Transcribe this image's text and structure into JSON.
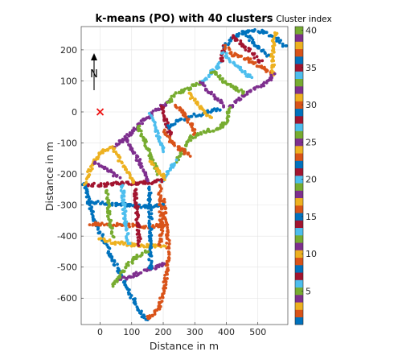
{
  "chart_data": {
    "type": "scatter",
    "title": "k-means (PO) with 40 clusters",
    "xlabel": "Distance in m",
    "ylabel": "Distance in m",
    "xlim": [
      -60,
      595
    ],
    "ylim": [
      -685,
      275
    ],
    "xticks": [
      0,
      100,
      200,
      300,
      400,
      500
    ],
    "yticks": [
      200,
      100,
      0,
      -100,
      -200,
      -300,
      -400,
      -500,
      -600
    ],
    "grid": true,
    "north_label": "N",
    "origin_marker": {
      "x": 0,
      "y": 0,
      "symbol": "x",
      "color": "#ee1111"
    },
    "colorbar": {
      "title": "Cluster index",
      "range": [
        1,
        40
      ],
      "ticks": [
        5,
        10,
        15,
        20,
        25,
        30,
        35,
        40
      ],
      "colors": [
        "#0072bd",
        "#d95319",
        "#edb120",
        "#7e2f8e",
        "#77ac30",
        "#4dbeee",
        "#a2142f",
        "#0072bd",
        "#d95319",
        "#edb120",
        "#7e2f8e",
        "#77ac30",
        "#4dbeee",
        "#a2142f",
        "#0072bd",
        "#d95319",
        "#edb120",
        "#7e2f8e",
        "#77ac30",
        "#4dbeee",
        "#a2142f",
        "#0072bd",
        "#d95319",
        "#edb120",
        "#7e2f8e",
        "#77ac30",
        "#4dbeee",
        "#a2142f",
        "#0072bd",
        "#d95319",
        "#edb120",
        "#7e2f8e",
        "#77ac30",
        "#4dbeee",
        "#a2142f",
        "#0072bd",
        "#d95319",
        "#edb120",
        "#7e2f8e",
        "#77ac30"
      ]
    },
    "tracks": [
      {
        "cluster": 1,
        "points": [
          [
            -50,
            -230
          ],
          [
            -20,
            -350
          ],
          [
            30,
            -450
          ],
          [
            80,
            -560
          ],
          [
            130,
            -650
          ],
          [
            150,
            -670
          ]
        ]
      },
      {
        "cluster": 2,
        "points": [
          [
            150,
            -670
          ],
          [
            185,
            -630
          ],
          [
            205,
            -560
          ],
          [
            215,
            -480
          ],
          [
            215,
            -400
          ],
          [
            205,
            -330
          ],
          [
            200,
            -280
          ]
        ]
      },
      {
        "cluster": 3,
        "points": [
          [
            -50,
            -230
          ],
          [
            -20,
            -160
          ],
          [
            5,
            -130
          ],
          [
            40,
            -115
          ]
        ]
      },
      {
        "cluster": 4,
        "points": [
          [
            40,
            -115
          ],
          [
            90,
            -75
          ],
          [
            140,
            -25
          ],
          [
            185,
            10
          ],
          [
            215,
            30
          ]
        ]
      },
      {
        "cluster": 5,
        "points": [
          [
            215,
            30
          ],
          [
            235,
            55
          ],
          [
            270,
            70
          ],
          [
            300,
            85
          ],
          [
            320,
            95
          ]
        ]
      },
      {
        "cluster": 6,
        "points": [
          [
            320,
            95
          ],
          [
            350,
            125
          ],
          [
            375,
            150
          ],
          [
            385,
            160
          ]
        ]
      },
      {
        "cluster": 7,
        "points": [
          [
            385,
            160
          ],
          [
            390,
            195
          ],
          [
            395,
            210
          ]
        ]
      },
      {
        "cluster": 8,
        "points": [
          [
            395,
            210
          ],
          [
            430,
            245
          ],
          [
            470,
            262
          ],
          [
            515,
            258
          ],
          [
            545,
            245
          ],
          [
            590,
            210
          ]
        ]
      },
      {
        "cluster": 9,
        "points": [
          [
            395,
            210
          ],
          [
            420,
            185
          ],
          [
            465,
            170
          ],
          [
            520,
            140
          ],
          [
            550,
            120
          ]
        ]
      },
      {
        "cluster": 10,
        "points": [
          [
            550,
            120
          ],
          [
            545,
            180
          ],
          [
            550,
            230
          ],
          [
            560,
            255
          ]
        ]
      },
      {
        "cluster": 11,
        "points": [
          [
            550,
            120
          ],
          [
            520,
            90
          ],
          [
            480,
            70
          ],
          [
            440,
            40
          ],
          [
            410,
            15
          ]
        ]
      },
      {
        "cluster": 12,
        "points": [
          [
            410,
            15
          ],
          [
            400,
            -30
          ],
          [
            380,
            -55
          ],
          [
            340,
            -60
          ],
          [
            290,
            -80
          ],
          [
            260,
            -130
          ],
          [
            240,
            -160
          ]
        ]
      },
      {
        "cluster": 13,
        "points": [
          [
            240,
            -160
          ],
          [
            230,
            -175
          ],
          [
            205,
            -210
          ],
          [
            195,
            -220
          ]
        ]
      },
      {
        "cluster": 14,
        "points": [
          [
            -40,
            -235
          ],
          [
            10,
            -235
          ],
          [
            70,
            -230
          ],
          [
            120,
            -230
          ],
          [
            175,
            -225
          ],
          [
            200,
            -220
          ]
        ]
      },
      {
        "cluster": 15,
        "points": [
          [
            -45,
            -290
          ],
          [
            20,
            -295
          ],
          [
            90,
            -300
          ],
          [
            150,
            -305
          ],
          [
            200,
            -300
          ]
        ]
      },
      {
        "cluster": 16,
        "points": [
          [
            -30,
            -360
          ],
          [
            30,
            -362
          ],
          [
            80,
            -365
          ],
          [
            140,
            -370
          ],
          [
            200,
            -365
          ]
        ]
      },
      {
        "cluster": 17,
        "points": [
          [
            0,
            -410
          ],
          [
            40,
            -420
          ],
          [
            100,
            -428
          ],
          [
            150,
            -432
          ],
          [
            205,
            -430
          ]
        ]
      },
      {
        "cluster": 18,
        "points": [
          [
            60,
            -540
          ],
          [
            110,
            -525
          ],
          [
            160,
            -505
          ],
          [
            205,
            -490
          ]
        ]
      },
      {
        "cluster": 19,
        "points": [
          [
            20,
            -250
          ],
          [
            25,
            -300
          ],
          [
            30,
            -350
          ],
          [
            40,
            -400
          ]
        ]
      },
      {
        "cluster": 20,
        "points": [
          [
            70,
            -240
          ],
          [
            75,
            -300
          ],
          [
            80,
            -360
          ],
          [
            90,
            -425
          ]
        ]
      },
      {
        "cluster": 21,
        "points": [
          [
            110,
            -245
          ],
          [
            115,
            -300
          ],
          [
            120,
            -365
          ],
          [
            125,
            -430
          ]
        ]
      },
      {
        "cluster": 22,
        "points": [
          [
            155,
            -240
          ],
          [
            158,
            -300
          ],
          [
            160,
            -360
          ],
          [
            158,
            -430
          ],
          [
            160,
            -505
          ]
        ]
      },
      {
        "cluster": 23,
        "points": [
          [
            190,
            -240
          ],
          [
            190,
            -300
          ],
          [
            195,
            -360
          ],
          [
            190,
            -430
          ]
        ]
      },
      {
        "cluster": 24,
        "points": [
          [
            40,
            -115
          ],
          [
            60,
            -150
          ],
          [
            85,
            -190
          ],
          [
            110,
            -230
          ]
        ]
      },
      {
        "cluster": 25,
        "points": [
          [
            80,
            -80
          ],
          [
            105,
            -125
          ],
          [
            130,
            -170
          ],
          [
            150,
            -225
          ]
        ]
      },
      {
        "cluster": 26,
        "points": [
          [
            120,
            -45
          ],
          [
            140,
            -95
          ],
          [
            160,
            -145
          ],
          [
            185,
            -200
          ]
        ]
      },
      {
        "cluster": 27,
        "points": [
          [
            160,
            -10
          ],
          [
            175,
            -55
          ],
          [
            190,
            -95
          ],
          [
            200,
            -130
          ]
        ]
      },
      {
        "cluster": 28,
        "points": [
          [
            195,
            20
          ],
          [
            205,
            -20
          ],
          [
            215,
            -55
          ],
          [
            225,
            -80
          ]
        ]
      },
      {
        "cluster": 29,
        "points": [
          [
            215,
            -50
          ],
          [
            245,
            -30
          ],
          [
            285,
            -15
          ],
          [
            330,
            -5
          ],
          [
            380,
            10
          ]
        ]
      },
      {
        "cluster": 30,
        "points": [
          [
            240,
            25
          ],
          [
            265,
            -5
          ],
          [
            290,
            -40
          ],
          [
            300,
            -70
          ]
        ]
      },
      {
        "cluster": 31,
        "points": [
          [
            280,
            60
          ],
          [
            305,
            30
          ],
          [
            330,
            0
          ],
          [
            350,
            -20
          ]
        ]
      },
      {
        "cluster": 32,
        "points": [
          [
            320,
            95
          ],
          [
            345,
            65
          ],
          [
            370,
            40
          ],
          [
            395,
            20
          ]
        ]
      },
      {
        "cluster": 33,
        "points": [
          [
            355,
            130
          ],
          [
            385,
            105
          ],
          [
            420,
            80
          ],
          [
            455,
            60
          ]
        ]
      },
      {
        "cluster": 34,
        "points": [
          [
            390,
            190
          ],
          [
            420,
            160
          ],
          [
            450,
            135
          ],
          [
            480,
            110
          ]
        ]
      },
      {
        "cluster": 35,
        "points": [
          [
            420,
            245
          ],
          [
            450,
            215
          ],
          [
            480,
            190
          ],
          [
            510,
            160
          ]
        ]
      },
      {
        "cluster": 36,
        "points": [
          [
            455,
            262
          ],
          [
            480,
            230
          ],
          [
            505,
            205
          ],
          [
            530,
            180
          ]
        ]
      },
      {
        "cluster": 37,
        "points": [
          [
            200,
            -60
          ],
          [
            225,
            -95
          ],
          [
            255,
            -120
          ],
          [
            285,
            -140
          ]
        ]
      },
      {
        "cluster": 38,
        "points": [
          [
            160,
            -160
          ],
          [
            185,
            -190
          ],
          [
            205,
            -215
          ]
        ]
      },
      {
        "cluster": 39,
        "points": [
          [
            -20,
            -160
          ],
          [
            20,
            -185
          ],
          [
            60,
            -210
          ]
        ]
      },
      {
        "cluster": 40,
        "points": [
          [
            40,
            -560
          ],
          [
            75,
            -510
          ],
          [
            110,
            -470
          ],
          [
            150,
            -450
          ]
        ]
      }
    ]
  }
}
